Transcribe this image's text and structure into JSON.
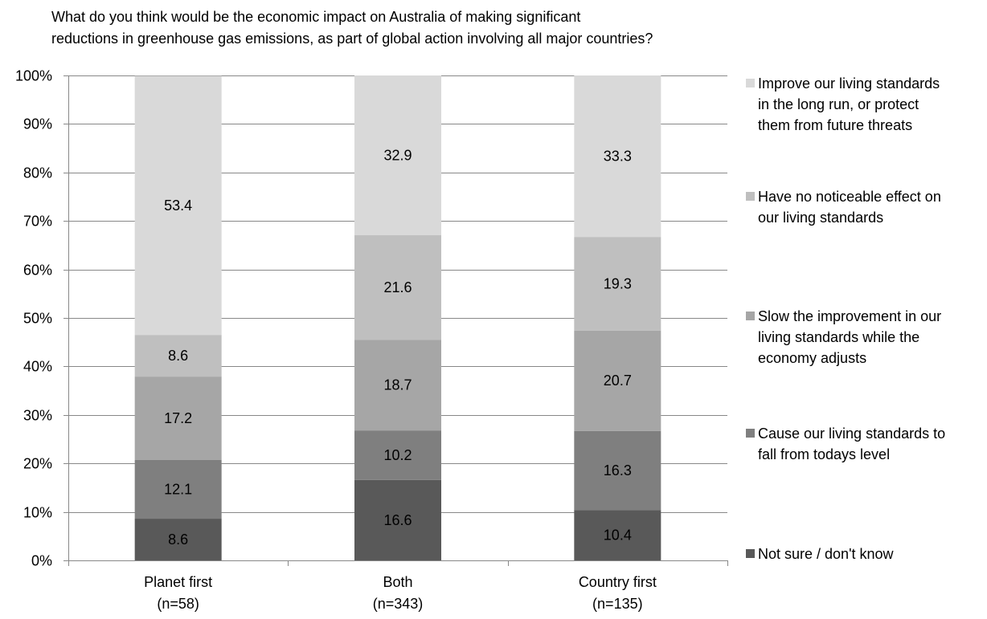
{
  "chart_data": {
    "type": "bar",
    "stacked": true,
    "title_lines": [
      "What do you think would be the economic impact on Australia of making significant",
      "reductions in greenhouse gas emissions, as part of global action involving all major countries?"
    ],
    "categories": [
      [
        "Planet first",
        "(n=58)"
      ],
      [
        "Both",
        "(n=343)"
      ],
      [
        "Country first",
        "(n=135)"
      ]
    ],
    "ylim": [
      0,
      100
    ],
    "yticks": [
      "0%",
      "10%",
      "20%",
      "30%",
      "40%",
      "50%",
      "60%",
      "70%",
      "80%",
      "90%",
      "100%"
    ],
    "grid": true,
    "legend_position": "right",
    "series": [
      {
        "name": "Not sure / don't know",
        "values": [
          8.6,
          16.6,
          10.4
        ],
        "labels": [
          "8.6",
          "16.6",
          "10.4"
        ],
        "color": "#595959"
      },
      {
        "name": "Cause our living standards to fall from todays level",
        "values": [
          12.1,
          10.2,
          16.3
        ],
        "labels": [
          "12.1",
          "10.2",
          "16.3"
        ],
        "color": "#7f7f7f"
      },
      {
        "name": "Slow the improvement in our living standards while the economy adjusts",
        "values": [
          17.2,
          18.7,
          20.7
        ],
        "labels": [
          "17.2",
          "18.7",
          "20.7"
        ],
        "color": "#a6a6a6"
      },
      {
        "name": "Have no noticeable effect on our living standards",
        "values": [
          8.6,
          21.6,
          19.3
        ],
        "labels": [
          "8.6",
          "21.6",
          "19.3"
        ],
        "color": "#bfbfbf"
      },
      {
        "name": "Improve our living standards in the long run, or protect them from future threats",
        "values": [
          53.4,
          32.9,
          33.3
        ],
        "labels": [
          "53.4",
          "32.9",
          "33.3"
        ],
        "color": "#d9d9d9"
      }
    ],
    "legend": [
      {
        "series": 4,
        "lines": [
          "Improve our living standards",
          "in the long run, or protect",
          "them from future threats"
        ]
      },
      {
        "series": 3,
        "lines": [
          "Have no noticeable effect on",
          "our living standards"
        ]
      },
      {
        "series": 2,
        "lines": [
          "Slow the improvement in our",
          "living standards while the",
          "economy adjusts"
        ]
      },
      {
        "series": 1,
        "lines": [
          "Cause our living standards to",
          "fall from todays level"
        ]
      },
      {
        "series": 0,
        "lines": [
          "Not sure / don't know"
        ]
      }
    ]
  }
}
